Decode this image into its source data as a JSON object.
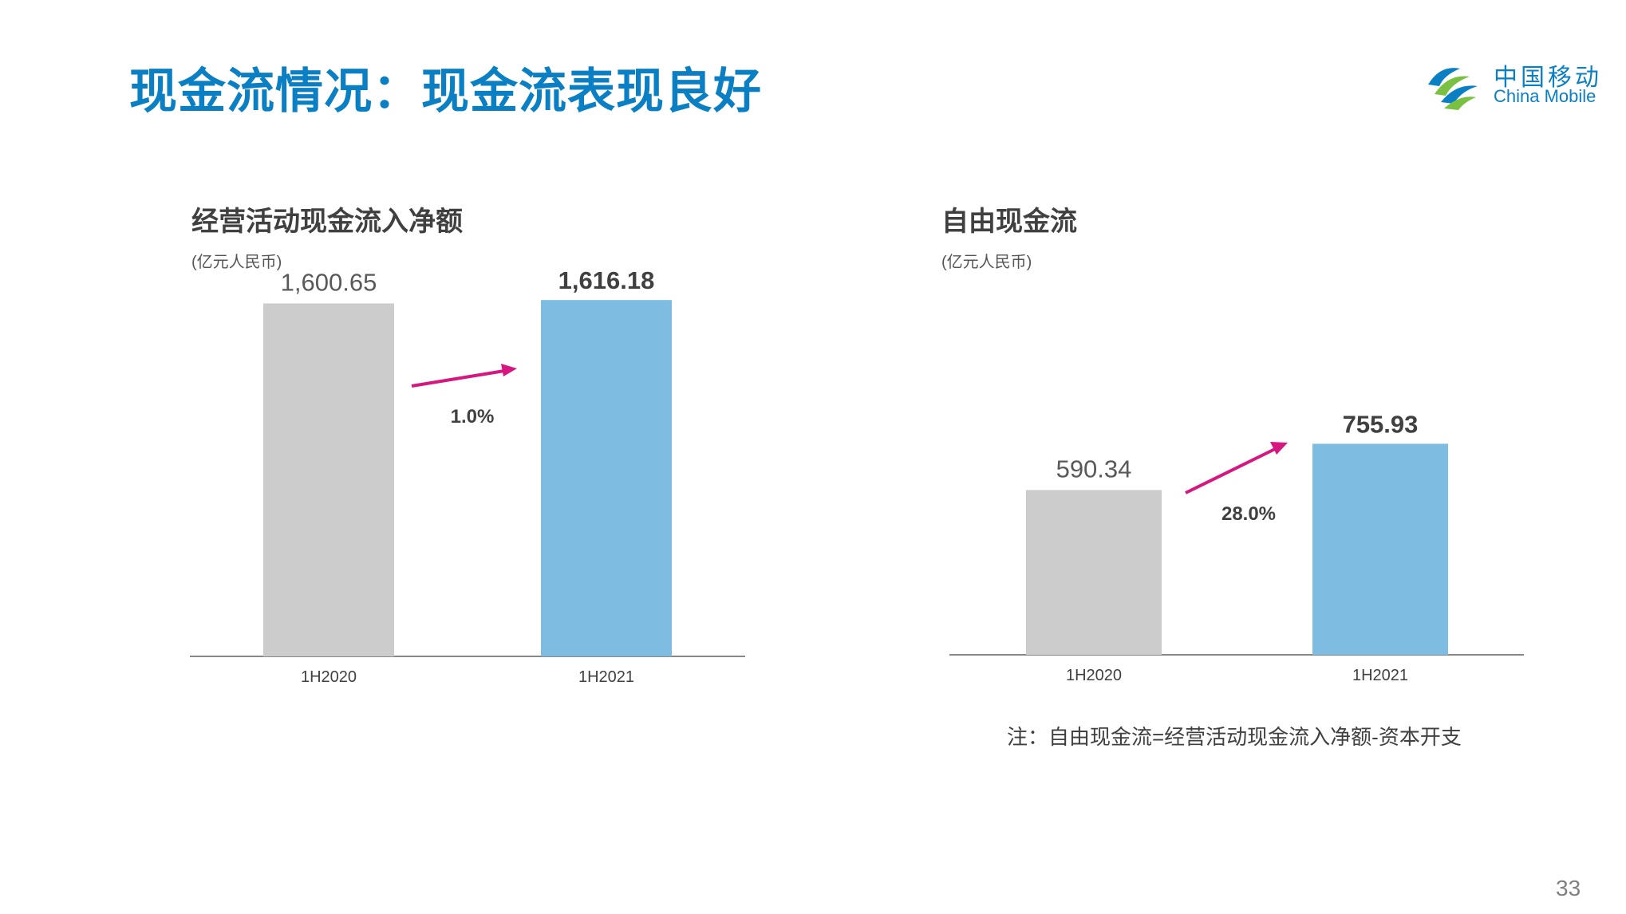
{
  "title": "现金流情况：现金流表现良好",
  "logo": {
    "cn": "中国移动",
    "en": "China Mobile"
  },
  "charts": [
    {
      "title": "经营活动现金流入净额",
      "unit": "(亿元人民币)",
      "growth": "1.0%"
    },
    {
      "title": "自由现金流",
      "unit": "(亿元人民币)",
      "growth": "28.0%"
    }
  ],
  "chart_data": [
    {
      "type": "bar",
      "title": "经营活动现金流入净额",
      "categories": [
        "1H2020",
        "1H2021"
      ],
      "values": [
        1600.65,
        1616.18
      ],
      "value_labels": [
        "1,600.65",
        "1,616.18"
      ],
      "bar_colors": [
        "#cccccc",
        "#7fbce2"
      ],
      "ylim": [
        0,
        1700
      ],
      "grid": false,
      "legend": "none"
    },
    {
      "type": "bar",
      "title": "自由现金流",
      "categories": [
        "1H2020",
        "1H2021"
      ],
      "values": [
        590.34,
        755.93
      ],
      "value_labels": [
        "590.34",
        "755.93"
      ],
      "bar_colors": [
        "#cccccc",
        "#7fbce2"
      ],
      "ylim": [
        0,
        1200
      ],
      "grid": false,
      "legend": "none"
    }
  ],
  "note": "注：自由现金流=经营活动现金流入净额-资本开支",
  "page_number": "33",
  "colors": {
    "title": "#0a7fc4",
    "arrow": "#d6177f",
    "axis": "#888888"
  }
}
